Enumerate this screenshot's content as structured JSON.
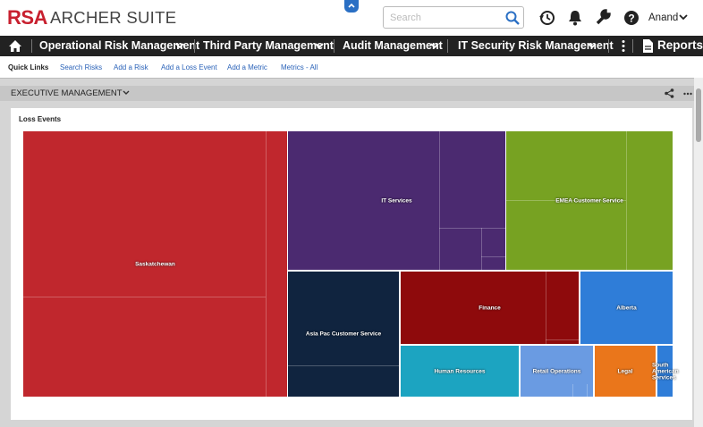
{
  "header": {
    "brand": "RSA",
    "product": "ARCHER SUITE",
    "search_placeholder": "Search",
    "user": "Anand"
  },
  "nav": {
    "items": [
      "Operational Risk Management",
      "Third Party Management",
      "Audit Management",
      "IT Security Risk Management"
    ],
    "reports": "Reports"
  },
  "quick_links": {
    "label": "Quick Links",
    "links": [
      "Search Risks",
      "Add a Risk",
      "Add a Loss Event",
      "Add a Metric",
      "Metrics - All"
    ]
  },
  "workspace": {
    "title": "EXECUTIVE MANAGEMENT"
  },
  "widget": {
    "title": "Loss Events",
    "tiles": [
      {
        "label": "Saskatchewan",
        "color": "#c0272d"
      },
      {
        "label": "IT Services",
        "color": "#4b2a70"
      },
      {
        "label": "EMEA Customer Service",
        "color": "#77a222"
      },
      {
        "label": "Asia Pac Customer Service",
        "color": "#10243f"
      },
      {
        "label": "Finance",
        "color": "#8e0a0c"
      },
      {
        "label": "Alberta",
        "color": "#2f7dd8"
      },
      {
        "label": "Human Resources",
        "color": "#1ca4c1"
      },
      {
        "label": "Retail Operations",
        "color": "#6a9be2"
      },
      {
        "label": "Legal",
        "color": "#ea761b"
      },
      {
        "label": "South American Services",
        "color": "#2f7dd8"
      }
    ]
  }
}
